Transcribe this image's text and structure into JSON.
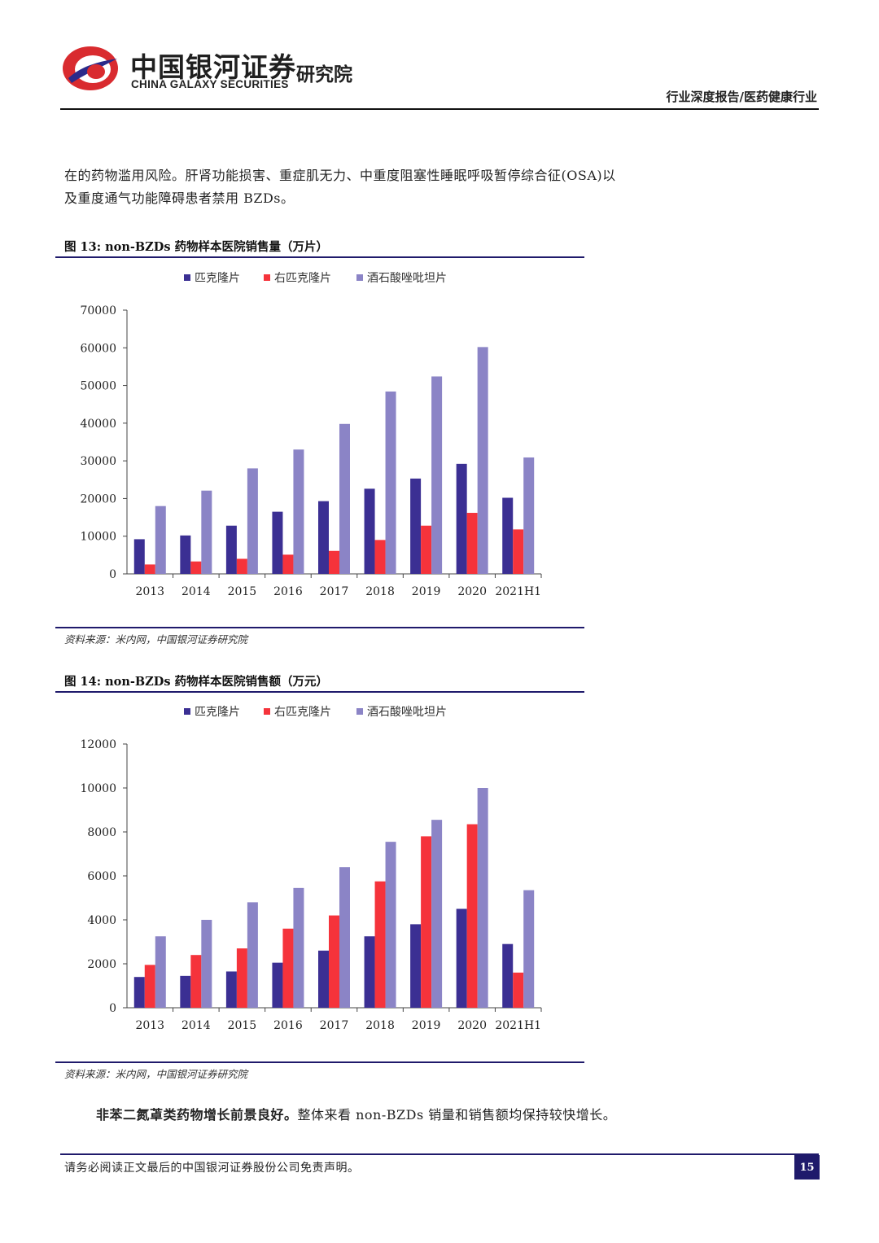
{
  "header": {
    "brand_cn": "中国银河证券",
    "brand_en": "CHINA GALAXY SECURITIES",
    "brand_sub": "研究院",
    "report_type": "行业深度报告/医药健康行业"
  },
  "intro": {
    "line1": "在的药物滥用风险。肝肾功能损害、重症肌无力、中重度阻塞性睡眠呼吸暂停综合征(OSA)以",
    "line2": "及重度通气功能障碍患者禁用 BZDs。"
  },
  "colors": {
    "series1": "#3b2f93",
    "series2": "#f5333b",
    "series3": "#8b84c6",
    "rule": "#1f1a6b"
  },
  "fig13": {
    "title": "图 13:  non-BZDs 药物样本医院销售量（万片）",
    "source": "资料来源：米内网，中国银河证券研究院"
  },
  "fig14": {
    "title": "图 14:  non-BZDs 药物样本医院销售额（万元）",
    "source": "资料来源：米内网，中国银河证券研究院"
  },
  "chart_data": [
    {
      "type": "bar",
      "title": "non-BZDs 药物样本医院销售量（万片）",
      "categories": [
        "2013",
        "2014",
        "2015",
        "2016",
        "2017",
        "2018",
        "2019",
        "2020",
        "2021H1"
      ],
      "series": [
        {
          "name": "匹克隆片",
          "values": [
            9200,
            10200,
            12800,
            16500,
            19300,
            22600,
            25300,
            29200,
            20200
          ]
        },
        {
          "name": "右匹克隆片",
          "values": [
            2500,
            3300,
            4000,
            5100,
            6100,
            9000,
            12800,
            16200,
            11800
          ]
        },
        {
          "name": "酒石酸唑吡坦片",
          "values": [
            18000,
            22100,
            28000,
            33000,
            39800,
            48400,
            52400,
            60200,
            30900
          ]
        }
      ],
      "yticks": [
        "0",
        "10000",
        "20000",
        "30000",
        "40000",
        "50000",
        "60000",
        "70000"
      ],
      "ylim": [
        0,
        70000
      ],
      "xlabel": "",
      "ylabel": "",
      "legend": "top"
    },
    {
      "type": "bar",
      "title": "non-BZDs 药物样本医院销售额（万元）",
      "categories": [
        "2013",
        "2014",
        "2015",
        "2016",
        "2017",
        "2018",
        "2019",
        "2020",
        "2021H1"
      ],
      "series": [
        {
          "name": "匹克隆片",
          "values": [
            1400,
            1450,
            1650,
            2050,
            2600,
            3250,
            3800,
            4500,
            2900
          ]
        },
        {
          "name": "右匹克隆片",
          "values": [
            1950,
            2400,
            2700,
            3600,
            4200,
            5750,
            7800,
            8350,
            1600
          ]
        },
        {
          "name": "酒石酸唑吡坦片",
          "values": [
            3250,
            4000,
            4800,
            5450,
            6400,
            7550,
            8550,
            10000,
            5350
          ]
        }
      ],
      "yticks": [
        "0",
        "2000",
        "4000",
        "6000",
        "8000",
        "10000",
        "12000"
      ],
      "ylim": [
        0,
        12000
      ],
      "xlabel": "",
      "ylabel": "",
      "legend": "top"
    }
  ],
  "conclusion": {
    "bold": "非苯二氮䓬类药物增长前景良好。",
    "rest": "整体来看 non-BZDs 销量和销售额均保持较快增长。"
  },
  "footer": {
    "disclaimer": "请务必阅读正文最后的中国银河证券股份公司免责声明。",
    "page": "15"
  }
}
